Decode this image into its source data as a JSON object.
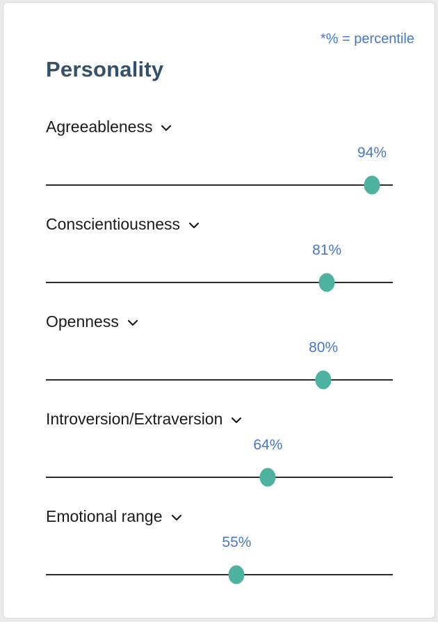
{
  "card": {
    "note": "*% = percentile",
    "title": "Personality"
  },
  "traits": [
    {
      "label": "Agreeableness",
      "value": 94,
      "display": "94%"
    },
    {
      "label": "Conscientiousness",
      "value": 81,
      "display": "81%"
    },
    {
      "label": "Openness",
      "value": 80,
      "display": "80%"
    },
    {
      "label": "Introversion/Extraversion",
      "value": 64,
      "display": "64%"
    },
    {
      "label": "Emotional range",
      "value": 55,
      "display": "55%"
    }
  ],
  "chart_data": {
    "type": "scatter",
    "title": "Personality",
    "annotation": "*% = percentile",
    "categories": [
      "Agreeableness",
      "Conscientiousness",
      "Openness",
      "Introversion/Extraversion",
      "Emotional range"
    ],
    "values": [
      94,
      81,
      80,
      64,
      55
    ],
    "xlabel": "",
    "ylabel": "percentile",
    "xlim": [
      0,
      100
    ],
    "grid": false,
    "legend": false
  },
  "colors": {
    "title_text": "#35506b",
    "note_text": "#4678c8",
    "value_text": "#4678c8",
    "label_text": "#1a1a1a",
    "dot_fill": "#4eb2a0",
    "track": "#2d2d2d",
    "card_background": "#ffffff",
    "card_border": "#d8d8d8",
    "page_background": "#ebebeb"
  }
}
